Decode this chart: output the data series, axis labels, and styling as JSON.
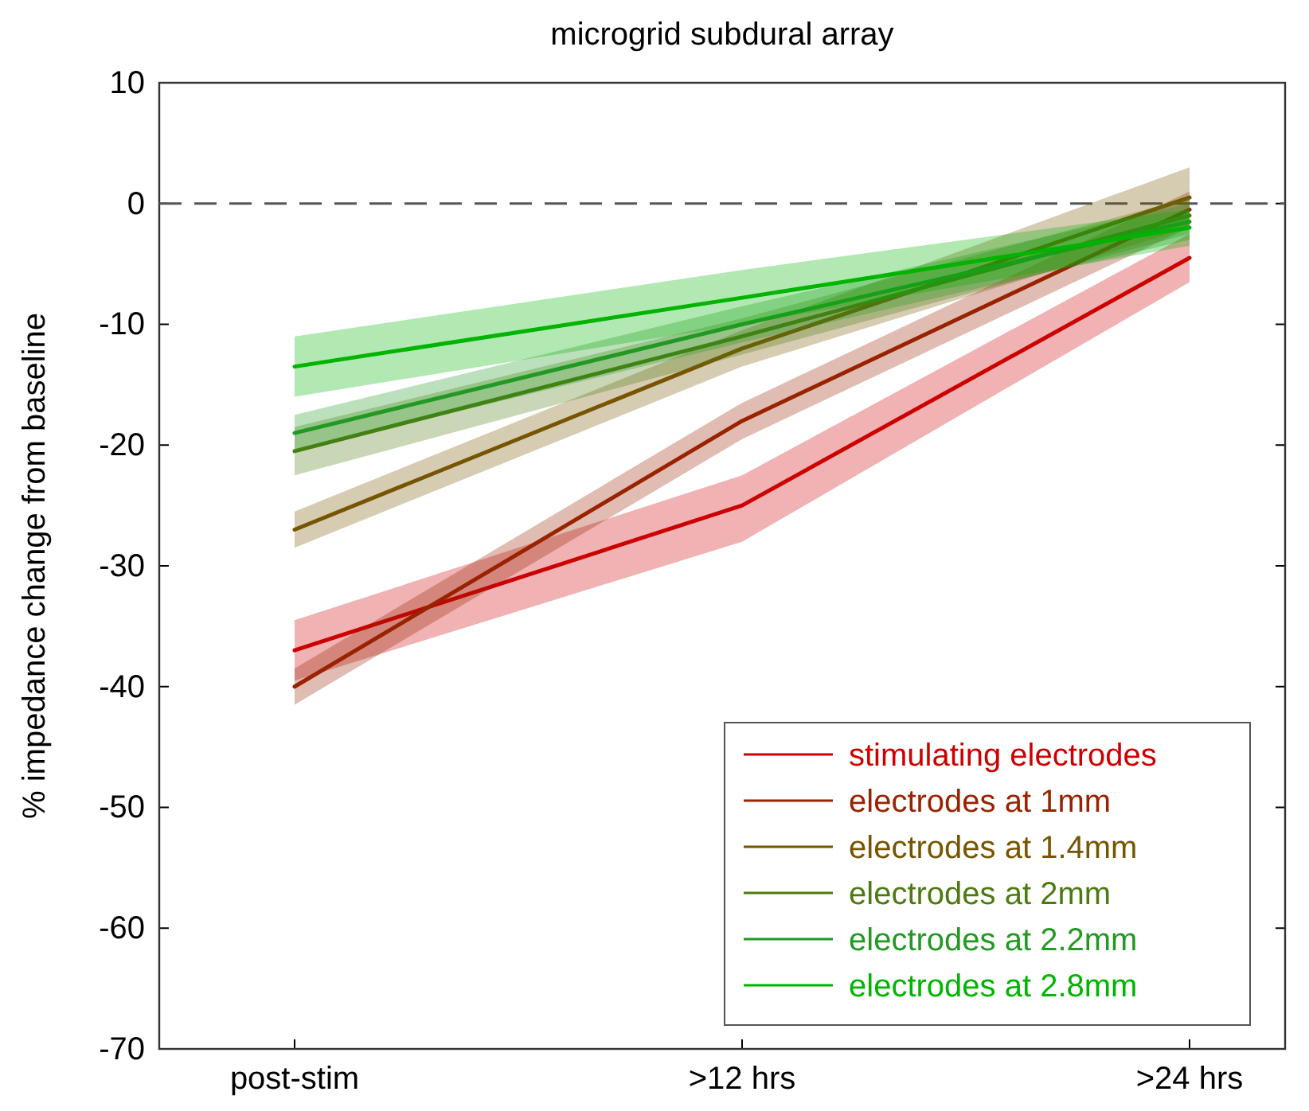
{
  "chart_data": {
    "type": "line",
    "title": "microgrid subdural array",
    "ylabel": "% impedance change from baseline",
    "categories": [
      "post-stim",
      ">12 hrs",
      ">24 hrs"
    ],
    "ylim": [
      -70,
      10
    ],
    "yticks": [
      -70,
      -60,
      -50,
      -40,
      -30,
      -20,
      -10,
      0,
      10
    ],
    "grid": false,
    "legend": "bottom right",
    "line_style": "solid",
    "ref_lines": [
      {
        "axis": "y",
        "value": 0,
        "line_style": "dashed",
        "color": "#555555"
      }
    ],
    "series": [
      {
        "name": "stimulating electrodes",
        "color": "#cc0000",
        "values": [
          -37,
          -25,
          -4.5
        ],
        "lower": [
          -39.5,
          -28,
          -6.5
        ],
        "upper": [
          -34.5,
          -22.5,
          -2.5
        ]
      },
      {
        "name": "electrodes at 1mm",
        "color": "#992200",
        "values": [
          -40,
          -18,
          -0.5
        ],
        "lower": [
          -41.5,
          -19.5,
          -2
        ],
        "upper": [
          -38.5,
          -16.5,
          1
        ]
      },
      {
        "name": "electrodes at 1.4mm",
        "color": "#775500",
        "values": [
          -27,
          -12,
          0.5
        ],
        "lower": [
          -28.5,
          -13.5,
          -2
        ],
        "upper": [
          -25.5,
          -10.5,
          3
        ]
      },
      {
        "name": "electrodes at 2mm",
        "color": "#4d7a10",
        "values": [
          -20.5,
          -11,
          -1
        ],
        "lower": [
          -22.5,
          -12.5,
          -2.5
        ],
        "upper": [
          -18.5,
          -9.5,
          0.5
        ]
      },
      {
        "name": "electrodes at 2.2mm",
        "color": "#229922",
        "values": [
          -19,
          -10,
          -1.5
        ],
        "lower": [
          -20.5,
          -11.5,
          -3
        ],
        "upper": [
          -17.5,
          -8.5,
          0
        ]
      },
      {
        "name": "electrodes at 2.8mm",
        "color": "#00b400",
        "values": [
          -13.5,
          -7.8,
          -2
        ],
        "lower": [
          -16,
          -10,
          -3.5
        ],
        "upper": [
          -11,
          -5.5,
          -0.5
        ]
      }
    ]
  }
}
